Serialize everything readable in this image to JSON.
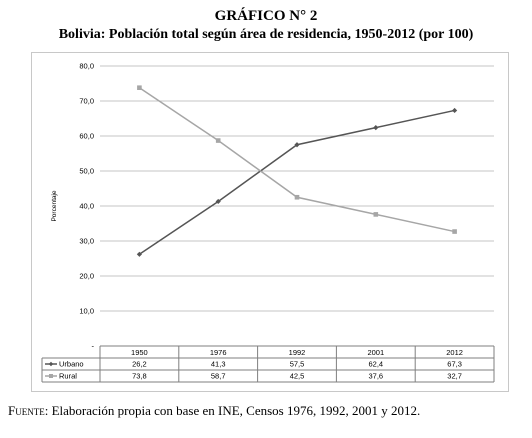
{
  "figure": {
    "title": "GRÁFICO N° 2",
    "subtitle": "Bolivia: Población total según área de residencia, 1950-2012 (por 100)",
    "source_label": "Fuente",
    "source_text": ": Elaboración propia con base en INE, Censos 1976, 1992, 2001 y 2012."
  },
  "chart_data": {
    "type": "line",
    "categories": [
      "1950",
      "1976",
      "1992",
      "2001",
      "2012"
    ],
    "ylabel": "Porcentaje",
    "ylim": [
      0,
      80
    ],
    "yticks": [
      "80,0",
      "70,0",
      "60,0",
      "50,0",
      "40,0",
      "30,0",
      "20,0",
      "10,0",
      "-"
    ],
    "grid": true,
    "legend": "data-table",
    "series": [
      {
        "name": "Urbano",
        "values": [
          26.2,
          41.3,
          57.5,
          62.4,
          67.3
        ],
        "labels": [
          "26,2",
          "41,3",
          "57,5",
          "62,4",
          "67,3"
        ],
        "color": "#555555",
        "marker": "diamond"
      },
      {
        "name": "Rural",
        "values": [
          73.8,
          58.7,
          42.5,
          37.6,
          32.7
        ],
        "labels": [
          "73,8",
          "58,7",
          "42,5",
          "37,6",
          "32,7"
        ],
        "color": "#a6a6a6",
        "marker": "square"
      }
    ]
  }
}
